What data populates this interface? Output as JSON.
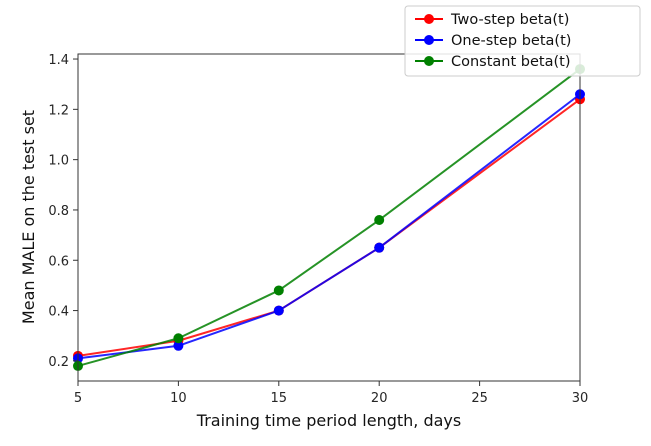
{
  "chart_data": {
    "type": "line",
    "title": "",
    "xlabel": "Training time period length, days",
    "ylabel": "Mean MALE on the test set",
    "x": [
      5,
      10,
      15,
      20,
      30
    ],
    "xlim": [
      5,
      30
    ],
    "ylim": [
      0.12,
      1.42
    ],
    "xticks": [
      5,
      10,
      15,
      20,
      25,
      30
    ],
    "yticks": [
      0.2,
      0.4,
      0.6,
      0.8,
      1.0,
      1.2,
      1.4
    ],
    "xtick_labels": [
      "5",
      "10",
      "15",
      "20",
      "25",
      "30"
    ],
    "ytick_labels": [
      "0.2",
      "0.4",
      "0.6",
      "0.8",
      "1.0",
      "1.2",
      "1.4"
    ],
    "grid": false,
    "legend_position": "top-right",
    "series": [
      {
        "name": "Two-step beta(t)",
        "color": "#ff0000",
        "values": [
          0.22,
          0.28,
          0.4,
          0.65,
          1.24
        ]
      },
      {
        "name": "One-step beta(t)",
        "color": "#0000ff",
        "values": [
          0.21,
          0.26,
          0.4,
          0.65,
          1.26
        ]
      },
      {
        "name": "Constant beta(t)",
        "color": "#008000",
        "values": [
          0.18,
          0.29,
          0.48,
          0.76,
          1.36
        ]
      }
    ]
  }
}
